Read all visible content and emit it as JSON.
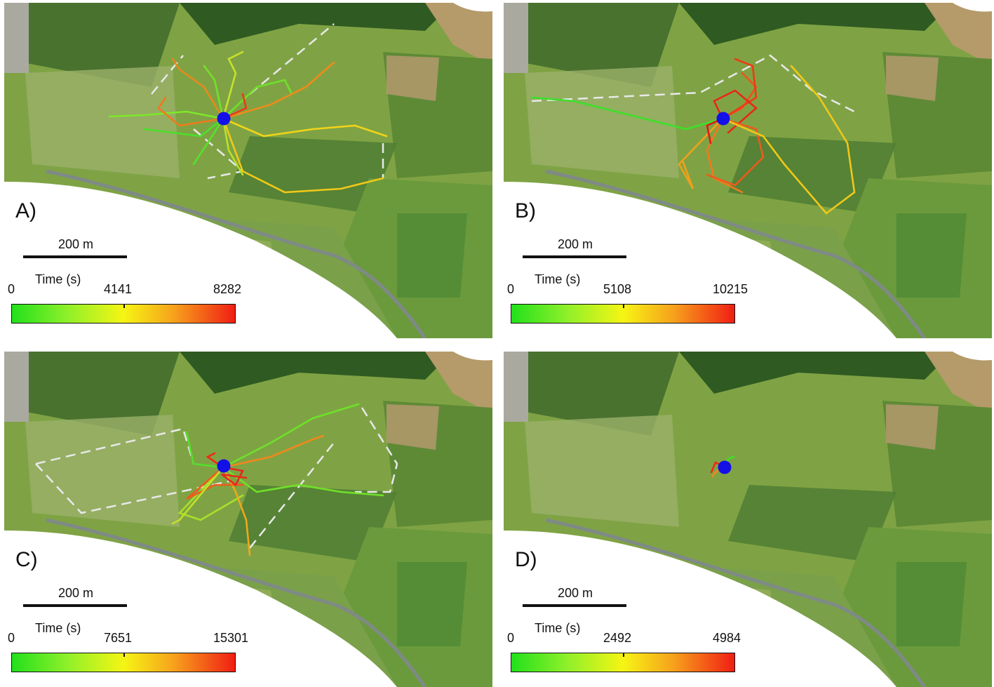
{
  "colors": {
    "start": "#22e01c",
    "middle": "#f5f514",
    "end": "#f01e14",
    "release_point": "#1410e8",
    "boundary": "#d8d8d8"
  },
  "panels": [
    {
      "label": "A)",
      "scale": "200 m",
      "time_label": "Time (s)",
      "time_min": "0",
      "time_mid": "4141",
      "time_max": "8282"
    },
    {
      "label": "B)",
      "scale": "200 m",
      "time_label": "Time (s)",
      "time_min": "0",
      "time_mid": "5108",
      "time_max": "10215"
    },
    {
      "label": "C)",
      "scale": "200 m",
      "time_label": "Time (s)",
      "time_min": "0",
      "time_mid": "7651",
      "time_max": "15301"
    },
    {
      "label": "D)",
      "scale": "200 m",
      "time_label": "Time (s)",
      "time_min": "0",
      "time_mid": "2492",
      "time_max": "4984"
    }
  ]
}
